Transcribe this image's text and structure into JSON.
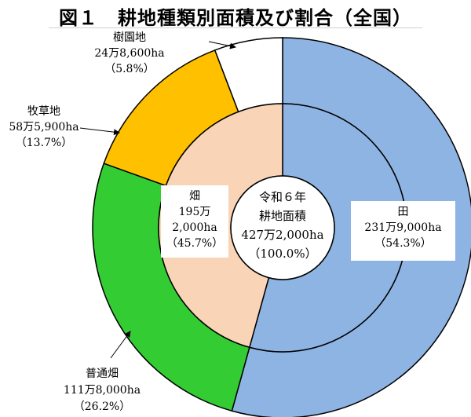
{
  "title": "図１　耕地種類別面積及び割合（全国）",
  "colors": {
    "ta": "#8eb4e3",
    "hatake": "#fad4b6",
    "futsu": "#33cc33",
    "bokusochi": "#ffc000",
    "jumokuen": "#ffffff",
    "edge": "#000000"
  },
  "center_label": {
    "line1": "令和６年",
    "line2": "耕地面積",
    "line3": "427万2,000ha",
    "line4": "（100.0%）"
  },
  "chart_data": {
    "type": "pie",
    "subtype": "nested donut",
    "title": "図１　耕地種類別面積及び割合（全国）",
    "center_total": {
      "period": "令和６年",
      "name": "耕地面積",
      "value_text": "427万2,000ha",
      "percent": 100.0
    },
    "outer_ring": [
      {
        "name": "田",
        "value_text": "231万9,000ha",
        "hectares": 2319000,
        "percent": 54.3
      },
      {
        "name": "普通畑",
        "value_text": "111万8,000ha",
        "hectares": 1118000,
        "percent": 26.2
      },
      {
        "name": "牧草地",
        "value_text": "58万5,900ha",
        "hectares": 585900,
        "percent": 13.7
      },
      {
        "name": "樹園地",
        "value_text": "24万8,600ha",
        "hectares": 248600,
        "percent": 5.8
      }
    ],
    "inner_ring": [
      {
        "name": "田",
        "value_text": "231万9,000ha",
        "hectares": 2319000,
        "percent": 54.3
      },
      {
        "name": "畑",
        "value_text": "195万2,000ha",
        "hectares": 1952000,
        "percent": 45.7
      }
    ]
  },
  "labels": {
    "ta": {
      "name": "田",
      "value": "231万9,000ha",
      "pct": "（54.3%）"
    },
    "hatake": {
      "name": "畑",
      "value1": "195万",
      "value2": "2,000ha",
      "pct": "（45.7%）"
    },
    "futsu": {
      "name": "普通畑",
      "value": "111万8,000ha",
      "pct": "（26.2%）"
    },
    "bokusochi": {
      "name": "牧草地",
      "value": "58万5,900ha",
      "pct": "（13.7%）"
    },
    "jumokuen": {
      "name": "樹園地",
      "value": "24万8,600ha",
      "pct": "（5.8%）"
    }
  }
}
